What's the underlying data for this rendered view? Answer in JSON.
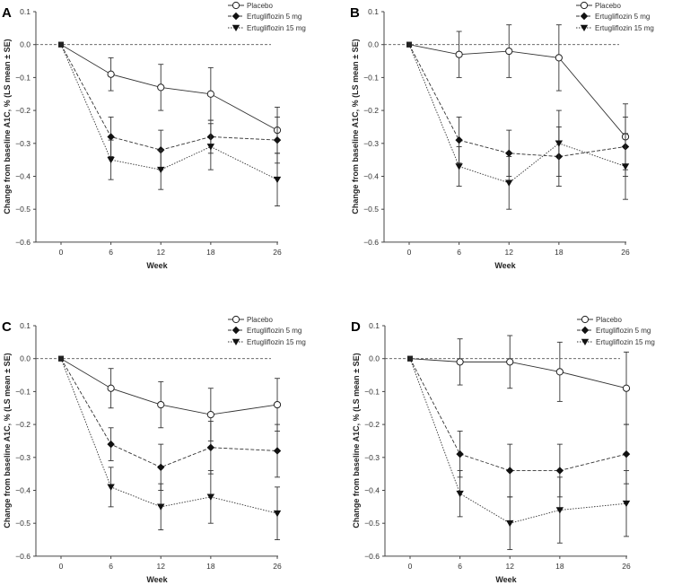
{
  "chart_data": [
    {
      "panel": "A",
      "type": "line",
      "title": "A",
      "xlabel": "Week",
      "ylabel": "Change from baseline A1C, % (LS mean ± SE)",
      "x": [
        0,
        6,
        12,
        18,
        26
      ],
      "ylim": [
        -0.6,
        0.1
      ],
      "yticks": [
        "0.1",
        "0.0",
        "−0.1",
        "−0.2",
        "−0.3",
        "−0.4",
        "−0.5",
        "−0.6"
      ],
      "xticks": [
        "0",
        "6",
        "12",
        "18",
        "26"
      ],
      "legend_position": "top-right",
      "series": [
        {
          "name": "Placebo",
          "values": [
            0,
            -0.09,
            -0.13,
            -0.15,
            -0.26
          ],
          "se": [
            0,
            0.05,
            0.07,
            0.08,
            0.07
          ]
        },
        {
          "name": "Ertugliflozin 5 mg",
          "values": [
            0,
            -0.28,
            -0.32,
            -0.28,
            -0.29
          ],
          "se": [
            0,
            0.06,
            0.06,
            0.05,
            0.07
          ]
        },
        {
          "name": "Ertugliflozin 15 mg",
          "values": [
            0,
            -0.35,
            -0.38,
            -0.31,
            -0.41
          ],
          "se": [
            0,
            0.06,
            0.06,
            0.07,
            0.08
          ]
        }
      ]
    },
    {
      "panel": "B",
      "type": "line",
      "title": "B",
      "xlabel": "Week",
      "ylabel": "Change from baseline A1C, % (LS mean ± SE)",
      "x": [
        0,
        6,
        12,
        18,
        26
      ],
      "ylim": [
        -0.6,
        0.1
      ],
      "yticks": [
        "0.1",
        "0.0",
        "−0.1",
        "−0.2",
        "−0.3",
        "−0.4",
        "−0.5",
        "−0.6"
      ],
      "xticks": [
        "0",
        "6",
        "12",
        "18",
        "26"
      ],
      "legend_position": "top-right",
      "series": [
        {
          "name": "Placebo",
          "values": [
            0,
            -0.03,
            -0.02,
            -0.04,
            -0.28
          ],
          "se": [
            0,
            0.07,
            0.08,
            0.1,
            0.1
          ]
        },
        {
          "name": "Ertugliflozin 5 mg",
          "values": [
            0,
            -0.29,
            -0.33,
            -0.34,
            -0.31
          ],
          "se": [
            0,
            0.07,
            0.07,
            0.09,
            0.09
          ]
        },
        {
          "name": "Ertugliflozin 15 mg",
          "values": [
            0,
            -0.37,
            -0.42,
            -0.3,
            -0.37
          ],
          "se": [
            0,
            0.06,
            0.08,
            0.1,
            0.1
          ]
        }
      ]
    },
    {
      "panel": "C",
      "type": "line",
      "title": "C",
      "xlabel": "Week",
      "ylabel": "Change from baseline A1C, % (LS mean ± SE)",
      "x": [
        0,
        6,
        12,
        18,
        26
      ],
      "ylim": [
        -0.6,
        0.1
      ],
      "yticks": [
        "0.1",
        "0.0",
        "−0.1",
        "−0.2",
        "−0.3",
        "−0.4",
        "−0.5",
        "−0.6"
      ],
      "xticks": [
        "0",
        "6",
        "12",
        "18",
        "26"
      ],
      "legend_position": "top-right",
      "series": [
        {
          "name": "Placebo",
          "values": [
            0,
            -0.09,
            -0.14,
            -0.17,
            -0.14
          ],
          "se": [
            0,
            0.06,
            0.07,
            0.08,
            0.08
          ]
        },
        {
          "name": "Ertugliflozin 5 mg",
          "values": [
            0,
            -0.26,
            -0.33,
            -0.27,
            -0.28
          ],
          "se": [
            0,
            0.05,
            0.07,
            0.08,
            0.08
          ]
        },
        {
          "name": "Ertugliflozin 15 mg",
          "values": [
            0,
            -0.39,
            -0.45,
            -0.42,
            -0.47
          ],
          "se": [
            0,
            0.06,
            0.07,
            0.08,
            0.08
          ]
        }
      ]
    },
    {
      "panel": "D",
      "type": "line",
      "title": "D",
      "xlabel": "Week",
      "ylabel": "Change from baseline A1C, % (LS mean ± SE)",
      "x": [
        0,
        6,
        12,
        18,
        26
      ],
      "ylim": [
        -0.6,
        0.1
      ],
      "yticks": [
        "0.1",
        "0.0",
        "−0.1",
        "−0.2",
        "−0.3",
        "−0.4",
        "−0.5",
        "−0.6"
      ],
      "xticks": [
        "0",
        "6",
        "12",
        "18",
        "26"
      ],
      "legend_position": "top-right",
      "series": [
        {
          "name": "Placebo",
          "values": [
            0,
            -0.01,
            -0.01,
            -0.04,
            -0.09
          ],
          "se": [
            0,
            0.07,
            0.08,
            0.09,
            0.11
          ]
        },
        {
          "name": "Ertugliflozin 5 mg",
          "values": [
            0,
            -0.29,
            -0.34,
            -0.34,
            -0.29
          ],
          "se": [
            0,
            0.07,
            0.08,
            0.08,
            0.09
          ]
        },
        {
          "name": "Ertugliflozin 15 mg",
          "values": [
            0,
            -0.41,
            -0.5,
            -0.46,
            -0.44
          ],
          "se": [
            0,
            0.07,
            0.08,
            0.1,
            0.1
          ]
        }
      ]
    }
  ]
}
